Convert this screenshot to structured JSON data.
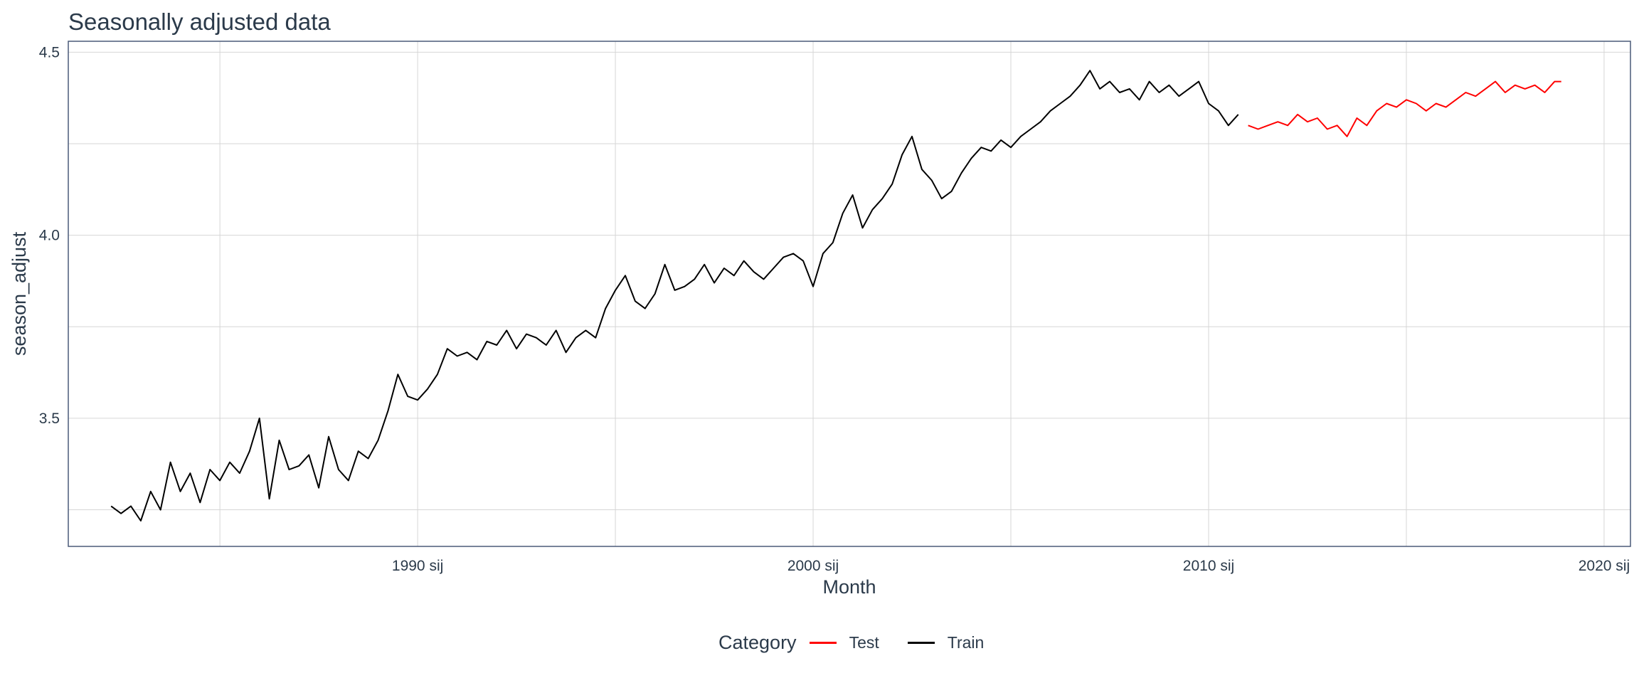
{
  "chart_data": {
    "type": "line",
    "title": "Seasonally adjusted data",
    "xlabel": "Month",
    "ylabel": "season_adjust",
    "xlim": [
      "1981-03",
      "2020-09"
    ],
    "ylim": [
      3.15,
      4.53
    ],
    "x_ticks": [
      {
        "date": "1990-01",
        "label": "1990 sij"
      },
      {
        "date": "2000-01",
        "label": "2000 sij"
      },
      {
        "date": "2010-01",
        "label": "2010 sij"
      },
      {
        "date": "2020-01",
        "label": "2020 sij"
      }
    ],
    "y_ticks": [
      3.5,
      4.0,
      4.5
    ],
    "y_tick_labels": [
      "3.5",
      "4.0",
      "4.5"
    ],
    "grid": true,
    "legend": {
      "title": "Category",
      "position": "bottom",
      "entries": [
        {
          "name": "Test",
          "color": "#ff0000"
        },
        {
          "name": "Train",
          "color": "#000000"
        }
      ]
    },
    "series": [
      {
        "name": "Train",
        "color": "#000000",
        "points": [
          [
            "1982-04",
            3.26
          ],
          [
            "1982-07",
            3.24
          ],
          [
            "1982-10",
            3.26
          ],
          [
            "1983-01",
            3.22
          ],
          [
            "1983-04",
            3.3
          ],
          [
            "1983-07",
            3.25
          ],
          [
            "1983-10",
            3.38
          ],
          [
            "1984-01",
            3.3
          ],
          [
            "1984-04",
            3.35
          ],
          [
            "1984-07",
            3.27
          ],
          [
            "1984-10",
            3.36
          ],
          [
            "1985-01",
            3.33
          ],
          [
            "1985-04",
            3.38
          ],
          [
            "1985-07",
            3.35
          ],
          [
            "1985-10",
            3.41
          ],
          [
            "1986-01",
            3.5
          ],
          [
            "1986-04",
            3.28
          ],
          [
            "1986-07",
            3.44
          ],
          [
            "1986-10",
            3.36
          ],
          [
            "1987-01",
            3.37
          ],
          [
            "1987-04",
            3.4
          ],
          [
            "1987-07",
            3.31
          ],
          [
            "1987-10",
            3.45
          ],
          [
            "1988-01",
            3.36
          ],
          [
            "1988-04",
            3.33
          ],
          [
            "1988-07",
            3.41
          ],
          [
            "1988-10",
            3.39
          ],
          [
            "1989-01",
            3.44
          ],
          [
            "1989-04",
            3.52
          ],
          [
            "1989-07",
            3.62
          ],
          [
            "1989-10",
            3.56
          ],
          [
            "1990-01",
            3.55
          ],
          [
            "1990-04",
            3.58
          ],
          [
            "1990-07",
            3.62
          ],
          [
            "1990-10",
            3.69
          ],
          [
            "1991-01",
            3.67
          ],
          [
            "1991-04",
            3.68
          ],
          [
            "1991-07",
            3.66
          ],
          [
            "1991-10",
            3.71
          ],
          [
            "1992-01",
            3.7
          ],
          [
            "1992-04",
            3.74
          ],
          [
            "1992-07",
            3.69
          ],
          [
            "1992-10",
            3.73
          ],
          [
            "1993-01",
            3.72
          ],
          [
            "1993-04",
            3.7
          ],
          [
            "1993-07",
            3.74
          ],
          [
            "1993-10",
            3.68
          ],
          [
            "1994-01",
            3.72
          ],
          [
            "1994-04",
            3.74
          ],
          [
            "1994-07",
            3.72
          ],
          [
            "1994-10",
            3.8
          ],
          [
            "1995-01",
            3.85
          ],
          [
            "1995-04",
            3.89
          ],
          [
            "1995-07",
            3.82
          ],
          [
            "1995-10",
            3.8
          ],
          [
            "1996-01",
            3.84
          ],
          [
            "1996-04",
            3.92
          ],
          [
            "1996-07",
            3.85
          ],
          [
            "1996-10",
            3.86
          ],
          [
            "1997-01",
            3.88
          ],
          [
            "1997-04",
            3.92
          ],
          [
            "1997-07",
            3.87
          ],
          [
            "1997-10",
            3.91
          ],
          [
            "1998-01",
            3.89
          ],
          [
            "1998-04",
            3.93
          ],
          [
            "1998-07",
            3.9
          ],
          [
            "1998-10",
            3.88
          ],
          [
            "1999-01",
            3.91
          ],
          [
            "1999-04",
            3.94
          ],
          [
            "1999-07",
            3.95
          ],
          [
            "1999-10",
            3.93
          ],
          [
            "2000-01",
            3.86
          ],
          [
            "2000-04",
            3.95
          ],
          [
            "2000-07",
            3.98
          ],
          [
            "2000-10",
            4.06
          ],
          [
            "2001-01",
            4.11
          ],
          [
            "2001-04",
            4.02
          ],
          [
            "2001-07",
            4.07
          ],
          [
            "2001-10",
            4.1
          ],
          [
            "2002-01",
            4.14
          ],
          [
            "2002-04",
            4.22
          ],
          [
            "2002-07",
            4.27
          ],
          [
            "2002-10",
            4.18
          ],
          [
            "2003-01",
            4.15
          ],
          [
            "2003-04",
            4.1
          ],
          [
            "2003-07",
            4.12
          ],
          [
            "2003-10",
            4.17
          ],
          [
            "2004-01",
            4.21
          ],
          [
            "2004-04",
            4.24
          ],
          [
            "2004-07",
            4.23
          ],
          [
            "2004-10",
            4.26
          ],
          [
            "2005-01",
            4.24
          ],
          [
            "2005-04",
            4.27
          ],
          [
            "2005-07",
            4.29
          ],
          [
            "2005-10",
            4.31
          ],
          [
            "2006-01",
            4.34
          ],
          [
            "2006-04",
            4.36
          ],
          [
            "2006-07",
            4.38
          ],
          [
            "2006-10",
            4.41
          ],
          [
            "2007-01",
            4.45
          ],
          [
            "2007-04",
            4.4
          ],
          [
            "2007-07",
            4.42
          ],
          [
            "2007-10",
            4.39
          ],
          [
            "2008-01",
            4.4
          ],
          [
            "2008-04",
            4.37
          ],
          [
            "2008-07",
            4.42
          ],
          [
            "2008-10",
            4.39
          ],
          [
            "2009-01",
            4.41
          ],
          [
            "2009-04",
            4.38
          ],
          [
            "2009-07",
            4.4
          ],
          [
            "2009-10",
            4.42
          ],
          [
            "2010-01",
            4.36
          ],
          [
            "2010-04",
            4.34
          ],
          [
            "2010-07",
            4.3
          ],
          [
            "2010-10",
            4.33
          ]
        ]
      },
      {
        "name": "Test",
        "color": "#ff0000",
        "points": [
          [
            "2011-01",
            4.3
          ],
          [
            "2011-04",
            4.29
          ],
          [
            "2011-07",
            4.3
          ],
          [
            "2011-10",
            4.31
          ],
          [
            "2012-01",
            4.3
          ],
          [
            "2012-04",
            4.33
          ],
          [
            "2012-07",
            4.31
          ],
          [
            "2012-10",
            4.32
          ],
          [
            "2013-01",
            4.29
          ],
          [
            "2013-04",
            4.3
          ],
          [
            "2013-07",
            4.27
          ],
          [
            "2013-10",
            4.32
          ],
          [
            "2014-01",
            4.3
          ],
          [
            "2014-04",
            4.34
          ],
          [
            "2014-07",
            4.36
          ],
          [
            "2014-10",
            4.35
          ],
          [
            "2015-01",
            4.37
          ],
          [
            "2015-04",
            4.36
          ],
          [
            "2015-07",
            4.34
          ],
          [
            "2015-10",
            4.36
          ],
          [
            "2016-01",
            4.35
          ],
          [
            "2016-04",
            4.37
          ],
          [
            "2016-07",
            4.39
          ],
          [
            "2016-10",
            4.38
          ],
          [
            "2017-01",
            4.4
          ],
          [
            "2017-04",
            4.42
          ],
          [
            "2017-07",
            4.39
          ],
          [
            "2017-10",
            4.41
          ],
          [
            "2018-01",
            4.4
          ],
          [
            "2018-04",
            4.41
          ],
          [
            "2018-07",
            4.39
          ],
          [
            "2018-10",
            4.42
          ],
          [
            "2018-12",
            4.42
          ]
        ]
      }
    ]
  }
}
